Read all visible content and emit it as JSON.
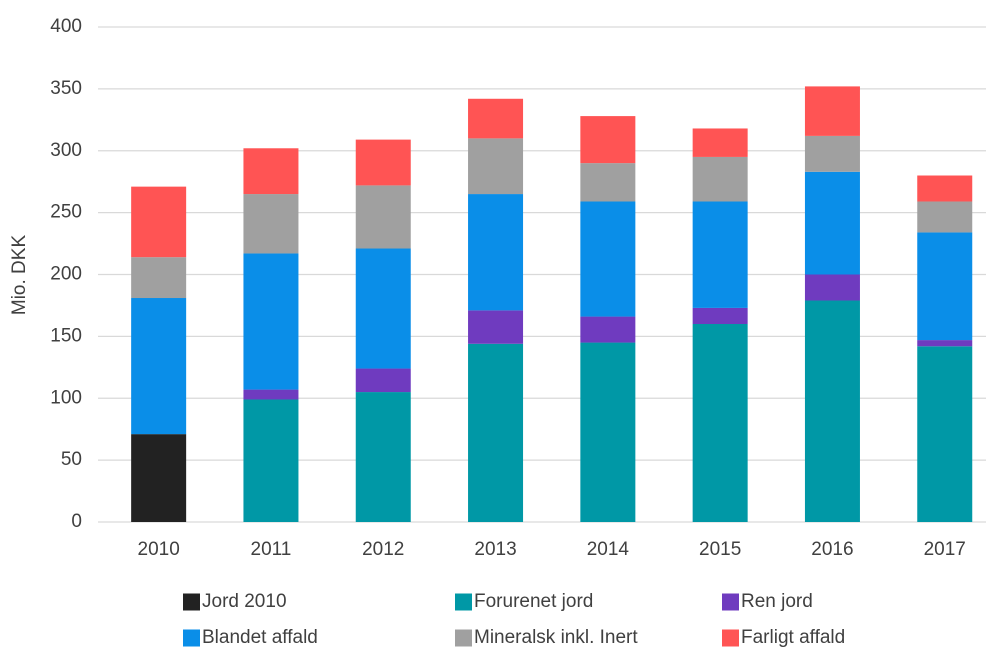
{
  "chart_data": {
    "type": "stacked_bar",
    "y_label": "Mio. DKK",
    "categories": [
      "2010",
      "2011",
      "2012",
      "2013",
      "2014",
      "2015",
      "2016",
      "2017"
    ],
    "series": [
      {
        "name": "Jord 2010",
        "color": "#222222",
        "values": [
          71,
          null,
          null,
          null,
          null,
          null,
          null,
          null
        ]
      },
      {
        "name": "Forurenet jord",
        "color": "#0098a6",
        "values": [
          null,
          99,
          105,
          144,
          145,
          160,
          179,
          142
        ]
      },
      {
        "name": "Ren jord",
        "color": "#6f3bbf",
        "values": [
          null,
          8,
          19,
          27,
          21,
          13,
          21,
          5
        ]
      },
      {
        "name": "Blandet affald",
        "color": "#0a8ee8",
        "values": [
          110,
          110,
          97,
          94,
          93,
          86,
          83,
          87
        ]
      },
      {
        "name": "Mineralsk inkl. Inert",
        "color": "#a0a0a0",
        "values": [
          33,
          48,
          51,
          45,
          31,
          36,
          29,
          25
        ]
      },
      {
        "name": "Farligt affald",
        "color": "#ff5454",
        "values": [
          57,
          37,
          37,
          32,
          38,
          23,
          40,
          21
        ]
      }
    ],
    "ylim": [
      0,
      400
    ],
    "yticks": [
      0,
      50,
      100,
      150,
      200,
      250,
      300,
      350,
      400
    ],
    "grid": true
  }
}
